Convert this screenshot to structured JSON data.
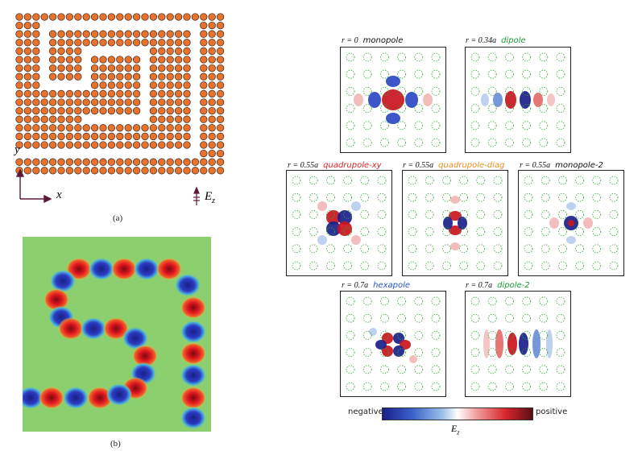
{
  "figure_a": {
    "caption": "(a)",
    "axis_x_label": "x",
    "axis_y_label": "y",
    "source_label": "E",
    "source_sub": "z",
    "rod_color": "#e8722b",
    "rod_edge": "#3a2a22",
    "arrow_color": "#5b1a3a"
  },
  "figure_b": {
    "caption": "(b)",
    "background": "#8ccf6e"
  },
  "modes": [
    {
      "r_label": "r = 0",
      "name": "monopole",
      "name_color": "#111111"
    },
    {
      "r_label": "r = 0.34a",
      "name": "dipole",
      "name_color": "#1a9a3a"
    },
    {
      "r_label": "r = 0.55a",
      "name": "quadrupole-xy",
      "name_color": "#d8262a"
    },
    {
      "r_label": "r = 0.55a",
      "name": "quadrupole-diag",
      "name_color": "#e58f1f"
    },
    {
      "r_label": "r = 0.55a",
      "name": "monopole-2",
      "name_color": "#111111"
    },
    {
      "r_label": "r = 0.7a",
      "name": "hexapole",
      "name_color": "#2a55c8"
    },
    {
      "r_label": "r = 0.7a",
      "name": "dipole-2",
      "name_color": "#1a9a3a"
    }
  ],
  "colorbar": {
    "negative_label": "negative",
    "positive_label": "positive",
    "quantity_label": "E",
    "quantity_sub": "z",
    "colors": [
      "#1b1f8a",
      "#3a63c9",
      "#9cc1ea",
      "#ffffff",
      "#f2a3a3",
      "#d8262a",
      "#5a0f14"
    ]
  }
}
